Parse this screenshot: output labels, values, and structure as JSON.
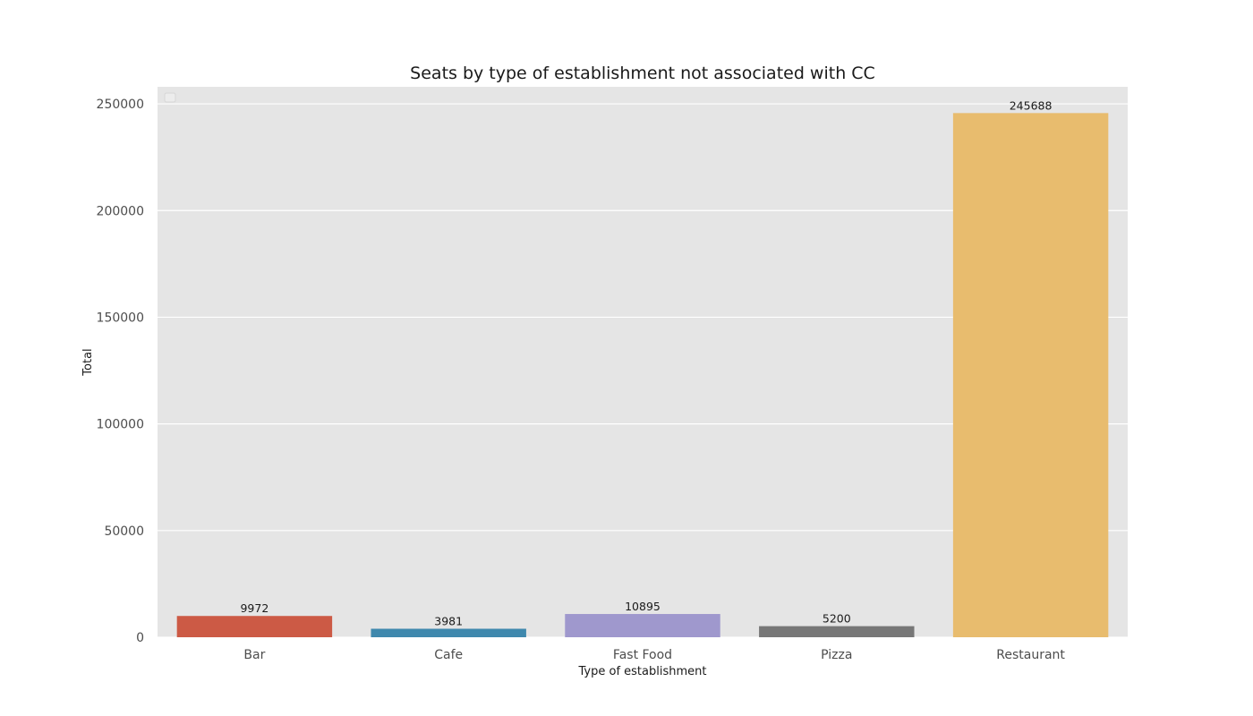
{
  "chart_data": {
    "type": "bar",
    "title": "Seats by type of establishment not associated with CC",
    "xlabel": "Type of establishment",
    "ylabel": "Total",
    "categories": [
      "Bar",
      "Cafe",
      "Fast Food",
      "Pizza",
      "Restaurant"
    ],
    "values": [
      9972,
      3981,
      10895,
      5200,
      245688
    ],
    "data_labels": [
      "9972",
      "3981",
      "10895",
      "5200",
      "245688"
    ],
    "colors": [
      "#cc5a45",
      "#3f88ad",
      "#9f98cd",
      "#777777",
      "#e8bc6e"
    ],
    "ylim": [
      0,
      258000
    ],
    "yticks": [
      0,
      50000,
      100000,
      150000,
      200000,
      250000
    ],
    "ytick_labels": [
      "0",
      "50000",
      "100000",
      "150000",
      "200000",
      "250000"
    ],
    "grid": true,
    "legend": "top-left, empty",
    "style": {
      "plot_background": "#e5e5e5",
      "grid_color": "#ffffff"
    }
  }
}
